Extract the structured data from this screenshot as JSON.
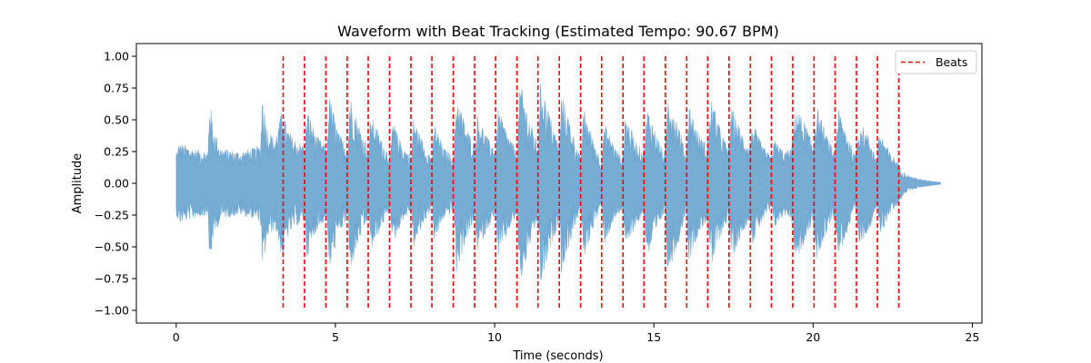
{
  "chart_data": {
    "type": "line",
    "title": "Waveform with Beat Tracking (Estimated Tempo: 90.67 BPM)",
    "xlabel": "Time (seconds)",
    "ylabel": "Amplitude",
    "xlim": [
      -1.25,
      25.3
    ],
    "ylim": [
      -1.1,
      1.1
    ],
    "xticks": [
      0,
      5,
      10,
      15,
      20,
      25
    ],
    "xtick_labels": [
      "0",
      "5",
      "10",
      "15",
      "20",
      "25"
    ],
    "yticks": [
      -1.0,
      -0.75,
      -0.5,
      -0.25,
      0.0,
      0.25,
      0.5,
      0.75,
      1.0
    ],
    "ytick_labels": [
      "−1.00",
      "−0.75",
      "−0.50",
      "−0.25",
      "0.00",
      "0.25",
      "0.50",
      "0.75",
      "1.00"
    ],
    "grid": false,
    "legend_position": "top-right",
    "waveform": {
      "color": "#4a90c4",
      "duration_s": 24.0,
      "envelope": {
        "t": [
          0,
          0.1,
          0.5,
          1.0,
          1.05,
          1.15,
          1.4,
          2.0,
          2.65,
          2.7,
          2.85,
          3.1,
          3.36,
          3.45,
          3.7,
          4.05,
          4.1,
          4.4,
          4.73,
          4.8,
          5.1,
          5.4,
          5.45,
          5.8,
          6.06,
          6.1,
          6.5,
          6.73,
          6.8,
          7.1,
          7.39,
          7.45,
          7.8,
          8.05,
          8.1,
          8.4,
          8.72,
          8.8,
          9.1,
          9.38,
          9.45,
          9.8,
          10.04,
          10.1,
          10.4,
          10.7,
          10.8,
          11.1,
          11.36,
          11.45,
          11.8,
          12.03,
          12.1,
          12.4,
          12.69,
          12.8,
          13.1,
          13.35,
          13.45,
          13.8,
          14.02,
          14.1,
          14.4,
          14.68,
          14.8,
          15.1,
          15.34,
          15.45,
          15.8,
          16.01,
          16.1,
          16.4,
          16.67,
          16.8,
          17.1,
          17.33,
          17.45,
          17.8,
          18.0,
          18.1,
          18.4,
          18.66,
          18.8,
          19.1,
          19.32,
          19.45,
          19.8,
          19.99,
          20.1,
          20.4,
          20.65,
          20.8,
          21.1,
          21.31,
          21.45,
          21.8,
          21.98,
          22.1,
          22.4,
          22.64,
          22.8,
          23.0,
          23.4,
          24.0
        ],
        "amp": [
          0.25,
          0.32,
          0.28,
          0.25,
          0.69,
          0.45,
          0.28,
          0.25,
          0.3,
          0.72,
          0.45,
          0.35,
          0.62,
          0.45,
          0.35,
          0.3,
          0.6,
          0.38,
          0.28,
          0.7,
          0.4,
          0.28,
          0.7,
          0.42,
          0.28,
          0.55,
          0.32,
          0.22,
          0.5,
          0.3,
          0.22,
          0.52,
          0.3,
          0.2,
          0.48,
          0.28,
          0.22,
          0.72,
          0.45,
          0.3,
          0.55,
          0.35,
          0.28,
          0.6,
          0.4,
          0.25,
          0.8,
          0.5,
          0.3,
          0.82,
          0.48,
          0.3,
          0.72,
          0.45,
          0.2,
          0.6,
          0.35,
          0.18,
          0.48,
          0.28,
          0.2,
          0.55,
          0.35,
          0.25,
          0.6,
          0.38,
          0.22,
          0.72,
          0.45,
          0.22,
          0.62,
          0.4,
          0.3,
          0.68,
          0.42,
          0.28,
          0.6,
          0.38,
          0.3,
          0.48,
          0.3,
          0.22,
          0.35,
          0.25,
          0.28,
          0.62,
          0.45,
          0.3,
          0.62,
          0.4,
          0.25,
          0.58,
          0.38,
          0.22,
          0.5,
          0.35,
          0.2,
          0.42,
          0.25,
          0.18,
          0.1,
          0.06,
          0.03,
          0.01
        ]
      }
    },
    "beats": {
      "name": "Beats",
      "color": "#ff0000",
      "style": "dashed",
      "times": [
        3.36,
        4.03,
        4.7,
        5.37,
        6.03,
        6.7,
        7.37,
        8.03,
        8.7,
        9.37,
        10.03,
        10.7,
        11.36,
        12.03,
        12.7,
        13.36,
        14.03,
        14.69,
        15.36,
        16.03,
        16.69,
        17.36,
        18.03,
        18.69,
        19.36,
        20.03,
        20.69,
        21.36,
        22.02,
        22.69
      ],
      "ymin": -1.0,
      "ymax": 1.0
    }
  }
}
